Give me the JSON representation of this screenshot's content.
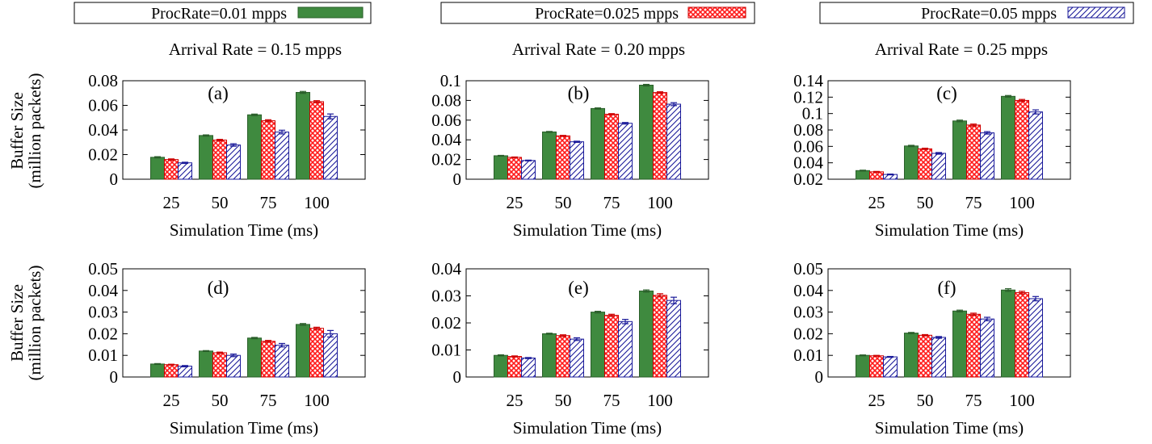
{
  "legend": [
    {
      "label": "ProcRate=0.01 mpps",
      "pattern": "solid-green"
    },
    {
      "label": "ProcRate=0.025 mpps",
      "pattern": "red-crosshatch"
    },
    {
      "label": "ProcRate=0.05 mpps",
      "pattern": "blue-diagonal"
    }
  ],
  "column_titles": [
    "Arrival Rate = 0.15 mpps",
    "Arrival Rate = 0.20 mpps",
    "Arrival Rate = 0.25 mpps"
  ],
  "ylabel_line1": "Buffer Size",
  "ylabel_line2": "(million packets)",
  "colors": {
    "green": "#3f8a3f",
    "green_dark": "#2a5f2a",
    "red": "#ff2020",
    "red_dark": "#cc0000",
    "blue": "#1a1a9a",
    "axis": "#000000"
  },
  "chart_data": [
    {
      "type": "bar",
      "panel": "(a)",
      "xlabel": "Simulation Time (ms)",
      "ylabel": "Buffer Size (million packets)",
      "categories": [
        "25",
        "50",
        "75",
        "100"
      ],
      "ylim": [
        0,
        0.08
      ],
      "yticks": [
        "0",
        "0.02",
        "0.04",
        "0.06",
        "0.08"
      ],
      "series": [
        {
          "name": "ProcRate=0.01 mpps",
          "values": [
            0.0178,
            0.0355,
            0.0523,
            0.0705
          ],
          "errors": [
            0.0005,
            0.0005,
            0.0006,
            0.0008
          ]
        },
        {
          "name": "ProcRate=0.025 mpps",
          "values": [
            0.016,
            0.0318,
            0.0475,
            0.063
          ],
          "errors": [
            0.0005,
            0.0006,
            0.0008,
            0.0008
          ]
        },
        {
          "name": "ProcRate=0.05 mpps",
          "values": [
            0.0133,
            0.0278,
            0.0383,
            0.051
          ],
          "errors": [
            0.0005,
            0.001,
            0.0015,
            0.002
          ]
        }
      ]
    },
    {
      "type": "bar",
      "panel": "(b)",
      "xlabel": "Simulation Time (ms)",
      "ylabel": "Buffer Size (million packets)",
      "categories": [
        "25",
        "50",
        "75",
        "100"
      ],
      "ylim": [
        0,
        0.1
      ],
      "yticks": [
        "0",
        "0.02",
        "0.04",
        "0.06",
        "0.08",
        "0.1"
      ],
      "series": [
        {
          "name": "ProcRate=0.01 mpps",
          "values": [
            0.0238,
            0.048,
            0.0718,
            0.0955
          ],
          "errors": [
            0.0004,
            0.0005,
            0.0006,
            0.0008
          ]
        },
        {
          "name": "ProcRate=0.025 mpps",
          "values": [
            0.0222,
            0.044,
            0.066,
            0.088
          ],
          "errors": [
            0.0004,
            0.0005,
            0.0006,
            0.0008
          ]
        },
        {
          "name": "ProcRate=0.05 mpps",
          "values": [
            0.019,
            0.038,
            0.0568,
            0.0762
          ],
          "errors": [
            0.0004,
            0.0006,
            0.0008,
            0.0015
          ]
        }
      ]
    },
    {
      "type": "bar",
      "panel": "(c)",
      "xlabel": "Simulation Time (ms)",
      "ylabel": "Buffer Size (million packets)",
      "categories": [
        "25",
        "50",
        "75",
        "100"
      ],
      "ylim": [
        0.02,
        0.14
      ],
      "yticks": [
        "0.02",
        "0.04",
        "0.06",
        "0.08",
        "0.1",
        "0.12",
        "0.14"
      ],
      "series": [
        {
          "name": "ProcRate=0.01 mpps",
          "values": [
            0.0305,
            0.0605,
            0.091,
            0.121
          ],
          "errors": [
            0.0005,
            0.0008,
            0.001,
            0.001
          ]
        },
        {
          "name": "ProcRate=0.025 mpps",
          "values": [
            0.029,
            0.057,
            0.086,
            0.116
          ],
          "errors": [
            0.0005,
            0.0008,
            0.0012,
            0.0012
          ]
        },
        {
          "name": "ProcRate=0.05 mpps",
          "values": [
            0.0258,
            0.0515,
            0.0765,
            0.102
          ],
          "errors": [
            0.0005,
            0.001,
            0.0015,
            0.0025
          ]
        }
      ]
    },
    {
      "type": "bar",
      "panel": "(d)",
      "xlabel": "Simulation Time (ms)",
      "ylabel": "Buffer Size (million packets)",
      "categories": [
        "25",
        "50",
        "75",
        "100"
      ],
      "ylim": [
        0,
        0.05
      ],
      "yticks": [
        "0",
        "0.01",
        "0.02",
        "0.03",
        "0.04",
        "0.05"
      ],
      "series": [
        {
          "name": "ProcRate=0.01 mpps",
          "values": [
            0.006,
            0.012,
            0.018,
            0.0243
          ],
          "errors": [
            0.0002,
            0.0002,
            0.0003,
            0.0004
          ]
        },
        {
          "name": "ProcRate=0.025 mpps",
          "values": [
            0.0057,
            0.0112,
            0.0165,
            0.0225
          ],
          "errors": [
            0.0002,
            0.0003,
            0.0004,
            0.0005
          ]
        },
        {
          "name": "ProcRate=0.05 mpps",
          "values": [
            0.005,
            0.01,
            0.0147,
            0.02
          ],
          "errors": [
            0.0003,
            0.0006,
            0.0008,
            0.0015
          ]
        }
      ]
    },
    {
      "type": "bar",
      "panel": "(e)",
      "xlabel": "Simulation Time (ms)",
      "ylabel": "Buffer Size (million packets)",
      "categories": [
        "25",
        "50",
        "75",
        "100"
      ],
      "ylim": [
        0,
        0.04
      ],
      "yticks": [
        "0",
        "0.01",
        "0.02",
        "0.03",
        "0.04"
      ],
      "series": [
        {
          "name": "ProcRate=0.01 mpps",
          "values": [
            0.008,
            0.016,
            0.024,
            0.0318
          ],
          "errors": [
            0.0002,
            0.0002,
            0.0003,
            0.0004
          ]
        },
        {
          "name": "ProcRate=0.025 mpps",
          "values": [
            0.0076,
            0.0153,
            0.0228,
            0.0302
          ],
          "errors": [
            0.0002,
            0.0003,
            0.0004,
            0.0006
          ]
        },
        {
          "name": "ProcRate=0.05 mpps",
          "values": [
            0.007,
            0.014,
            0.0205,
            0.0283
          ],
          "errors": [
            0.0002,
            0.0005,
            0.0008,
            0.0012
          ]
        }
      ]
    },
    {
      "type": "bar",
      "panel": "(f)",
      "xlabel": "Simulation Time (ms)",
      "ylabel": "Buffer Size (million packets)",
      "categories": [
        "25",
        "50",
        "75",
        "100"
      ],
      "ylim": [
        0,
        0.05
      ],
      "yticks": [
        "0",
        "0.01",
        "0.02",
        "0.03",
        "0.04",
        "0.05"
      ],
      "series": [
        {
          "name": "ProcRate=0.01 mpps",
          "values": [
            0.01,
            0.0203,
            0.0305,
            0.0402
          ],
          "errors": [
            0.0002,
            0.0003,
            0.0004,
            0.0006
          ]
        },
        {
          "name": "ProcRate=0.025 mpps",
          "values": [
            0.0098,
            0.0193,
            0.029,
            0.039
          ],
          "errors": [
            0.0002,
            0.0003,
            0.0005,
            0.0006
          ]
        },
        {
          "name": "ProcRate=0.05 mpps",
          "values": [
            0.0093,
            0.0183,
            0.0268,
            0.0362
          ],
          "errors": [
            0.0002,
            0.0004,
            0.0008,
            0.001
          ]
        }
      ]
    }
  ]
}
